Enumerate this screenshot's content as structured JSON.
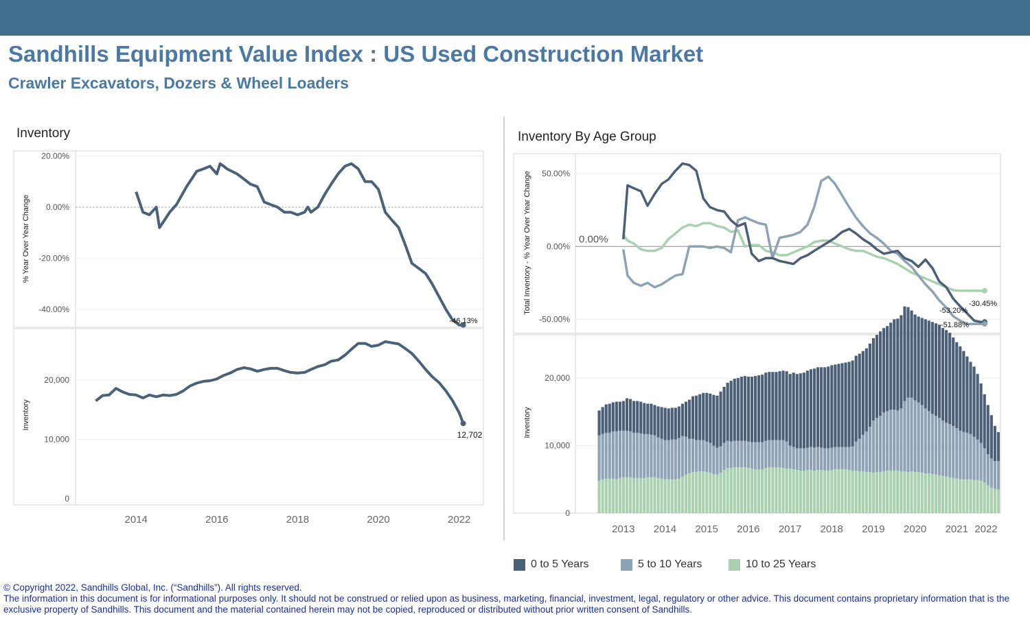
{
  "header": {
    "title": "Sandhills Equipment Value Index : US Used Construction Market",
    "subtitle": "Crawler Excavators, Dozers &  Wheel Loaders"
  },
  "colors": {
    "header_bar": "#3f6e8f",
    "title": "#4a79a5",
    "age_0_5": "#4b5f77",
    "age_5_10": "#8ea2b6",
    "age_10_25": "#a9d1b0",
    "line": "#4b6178",
    "footer_text": "#1a2f9a"
  },
  "left_panel": {
    "title": "Inventory"
  },
  "right_panel": {
    "title": "Inventory By Age Group"
  },
  "legend": {
    "items": [
      {
        "label": "0 to 5 Years",
        "color": "#4b5f77"
      },
      {
        "label": "5 to 10 Years",
        "color": "#8ea2b6"
      },
      {
        "label": "10 to 25 Years",
        "color": "#a9d1b0"
      }
    ]
  },
  "footer": {
    "line1": "© Copyright 2022, Sandhills Global, Inc. (“Sandhills”). All rights reserved.",
    "line2": "The information in this document is for informational purposes only.  It should not be construed or relied upon as business, marketing, financial, investment, legal, regulatory or other advice. This document contains proprietary information that is the exclusive property of Sandhills. This document and the material contained herein may not be copied, reproduced or distributed without prior written consent of Sandhills."
  },
  "chart_data": [
    {
      "id": "yoy_total",
      "type": "line",
      "ylabel": "% Year Over Year Change",
      "ylim": [
        -47,
        22
      ],
      "yticks": [
        20,
        0,
        -20,
        -40
      ],
      "ytick_labels": [
        "20.00%",
        "0.00%",
        "-20.00%",
        "-40.00%"
      ],
      "zero_line": true,
      "end_label": "-46.13%",
      "x": [
        2014.0,
        2014.17,
        2014.33,
        2014.5,
        2014.58,
        2014.75,
        2014.83,
        2015.0,
        2015.25,
        2015.5,
        2015.67,
        2015.83,
        2016.0,
        2016.08,
        2016.17,
        2016.25,
        2016.5,
        2016.67,
        2016.83,
        2017.0,
        2017.17,
        2017.33,
        2017.5,
        2017.67,
        2017.83,
        2018.0,
        2018.17,
        2018.25,
        2018.33,
        2018.5,
        2018.67,
        2018.83,
        2019.0,
        2019.17,
        2019.33,
        2019.5,
        2019.67,
        2019.83,
        2020.0,
        2020.17,
        2020.33,
        2020.5,
        2020.67,
        2020.83,
        2021.0,
        2021.17,
        2021.33,
        2021.5,
        2021.67,
        2021.83,
        2022.0,
        2022.1
      ],
      "y": [
        6,
        -2,
        -3,
        0,
        -8,
        -4,
        -2,
        1,
        8,
        14,
        15,
        16,
        13,
        17,
        16,
        15,
        13,
        11,
        9,
        8,
        2,
        1,
        0,
        -2,
        -2,
        -3,
        -2,
        0,
        -2,
        0,
        5,
        9,
        13,
        16,
        17,
        15,
        10,
        10,
        7,
        -2,
        -5,
        -8,
        -15,
        -22,
        -24,
        -26,
        -30,
        -35,
        -40,
        -44,
        -46.13,
        -46.13
      ]
    },
    {
      "id": "inventory_total",
      "type": "line",
      "ylabel": "Inventory",
      "ylim": [
        0,
        28000
      ],
      "yticks": [
        0,
        10000,
        20000
      ],
      "ytick_labels": [
        "0",
        "10,000",
        "20,000"
      ],
      "xticks": [
        2014,
        2016,
        2018,
        2020,
        2022
      ],
      "xlim": [
        2012.5,
        2022.6
      ],
      "end_label": "12,702",
      "x": [
        2013.0,
        2013.17,
        2013.33,
        2013.5,
        2013.67,
        2013.83,
        2014.0,
        2014.17,
        2014.33,
        2014.5,
        2014.67,
        2014.83,
        2015.0,
        2015.17,
        2015.33,
        2015.5,
        2015.67,
        2015.83,
        2016.0,
        2016.17,
        2016.33,
        2016.5,
        2016.67,
        2016.83,
        2017.0,
        2017.17,
        2017.33,
        2017.5,
        2017.67,
        2017.83,
        2018.0,
        2018.17,
        2018.33,
        2018.5,
        2018.67,
        2018.83,
        2019.0,
        2019.17,
        2019.33,
        2019.5,
        2019.67,
        2019.83,
        2020.0,
        2020.17,
        2020.33,
        2020.5,
        2020.67,
        2020.83,
        2021.0,
        2021.17,
        2021.33,
        2021.5,
        2021.67,
        2021.83,
        2022.0,
        2022.1
      ],
      "y": [
        16500,
        17400,
        17500,
        18600,
        18000,
        17600,
        17500,
        17000,
        17500,
        17200,
        17500,
        17400,
        17600,
        18200,
        19000,
        19500,
        19800,
        19900,
        20200,
        20800,
        21200,
        21800,
        22100,
        21900,
        21500,
        21800,
        22000,
        22000,
        21600,
        21300,
        21200,
        21300,
        21800,
        22300,
        22600,
        23200,
        23400,
        24200,
        25200,
        26200,
        26200,
        25700,
        25900,
        26500,
        26300,
        26100,
        25300,
        24500,
        23200,
        21800,
        20600,
        19600,
        18200,
        16600,
        14500,
        12702
      ]
    },
    {
      "id": "yoy_by_age",
      "type": "line",
      "ylabel": "Total Inventory - % Year Over Year Change",
      "ylim": [
        -55,
        60
      ],
      "yticks": [
        50,
        0,
        -50
      ],
      "ytick_labels": [
        "50.00%",
        "0.00%",
        "-50.00%"
      ],
      "zero_label": "0.00%",
      "xlim": [
        2012.35,
        2022.55
      ],
      "x": [
        2013.5,
        2013.6,
        2013.75,
        2013.92,
        2014.08,
        2014.25,
        2014.42,
        2014.58,
        2014.75,
        2014.92,
        2015.08,
        2015.25,
        2015.42,
        2015.58,
        2015.75,
        2015.92,
        2016.08,
        2016.25,
        2016.42,
        2016.58,
        2016.75,
        2016.92,
        2017.08,
        2017.25,
        2017.42,
        2017.58,
        2017.75,
        2017.92,
        2018.08,
        2018.25,
        2018.42,
        2018.58,
        2018.75,
        2018.92,
        2019.08,
        2019.25,
        2019.42,
        2019.58,
        2019.75,
        2019.92,
        2020.08,
        2020.25,
        2020.42,
        2020.58,
        2020.75,
        2020.92,
        2021.08,
        2021.25,
        2021.42,
        2021.58,
        2021.75,
        2021.92,
        2022.08,
        2022.17
      ],
      "series": [
        {
          "name": "0 to 5 Years",
          "color": "#4b5f77",
          "end_label": "-51.88%",
          "y": [
            5,
            42,
            40,
            38,
            28,
            36,
            43,
            46,
            52,
            57,
            56,
            52,
            33,
            27,
            25,
            24,
            18,
            14,
            16,
            -5,
            -10,
            -8,
            -8,
            -10,
            -11,
            -12,
            -8,
            -6,
            -3,
            0,
            3,
            6,
            10,
            12,
            9,
            5,
            2,
            -2,
            -5,
            -4,
            -3,
            -8,
            -10,
            -14,
            -9,
            -15,
            -24,
            -28,
            -36,
            -41,
            -46,
            -51,
            -51.88,
            -51.88
          ]
        },
        {
          "name": "5 to 10 Years",
          "color": "#8ea2b6",
          "end_label": "-53.20%",
          "y": [
            -2,
            -20,
            -25,
            -27,
            -25,
            -28,
            -26,
            -23,
            -20,
            -19,
            0,
            0,
            0,
            -1,
            0,
            -1,
            -4,
            18,
            20,
            18,
            16,
            15,
            -8,
            6,
            7,
            8,
            10,
            15,
            27,
            45,
            48,
            43,
            35,
            27,
            20,
            14,
            9,
            6,
            2,
            -3,
            -5,
            -10,
            -14,
            -20,
            -26,
            -31,
            -37,
            -42,
            -48,
            -51,
            -53.2,
            -53.2,
            -53.2,
            -53.2
          ]
        },
        {
          "name": "10 to 25 Years",
          "color": "#a9d1b0",
          "end_label": "-30.45%",
          "y": [
            8,
            4,
            2,
            -2,
            -3,
            -3,
            -1,
            5,
            9,
            13,
            15,
            14,
            16,
            16,
            14,
            13,
            10,
            11,
            0,
            1,
            1,
            -3,
            -4,
            -6,
            -6,
            -4,
            -2,
            0,
            3,
            4,
            4,
            2,
            0,
            -2,
            -3,
            -3,
            -5,
            -7,
            -8,
            -10,
            -12,
            -15,
            -18,
            -20,
            -22,
            -24,
            -26,
            -28,
            -30,
            -30.45,
            -30.45,
            -30.45,
            -30.45,
            -30.45
          ]
        }
      ]
    },
    {
      "id": "inventory_by_age",
      "type": "bar",
      "stacked": true,
      "ylabel": "Inventory",
      "ylim": [
        0,
        26000
      ],
      "yticks": [
        0,
        10000,
        20000
      ],
      "ytick_labels": [
        "0",
        "10,000",
        "20,000"
      ],
      "xticks": [
        2013,
        2014,
        2015,
        2016,
        2017,
        2018,
        2019,
        2020,
        2021,
        2022
      ],
      "xlim": [
        2012.35,
        2022.55
      ],
      "x_start": 2012.92,
      "x_step": 0.0833,
      "series": [
        {
          "name": "10 to 25 Years",
          "color": "#a9d1b0",
          "values": [
            4800,
            5000,
            5100,
            5100,
            5100,
            5000,
            5200,
            5300,
            5300,
            5300,
            5200,
            5200,
            5200,
            5200,
            5300,
            5300,
            5300,
            5200,
            5100,
            5000,
            5000,
            5000,
            5000,
            5100,
            5400,
            5700,
            5900,
            6100,
            6100,
            6200,
            6200,
            6100,
            6000,
            5800,
            5700,
            6000,
            6400,
            6700,
            6700,
            6800,
            6800,
            6800,
            6800,
            6700,
            6600,
            6500,
            6500,
            6500,
            6700,
            6800,
            6800,
            6800,
            6800,
            6700,
            6600,
            6600,
            6500,
            6400,
            6300,
            6300,
            6400,
            6400,
            6300,
            6400,
            6400,
            6300,
            6300,
            6400,
            6500,
            6500,
            6500,
            6500,
            6400,
            6300,
            6300,
            6200,
            6200,
            6100,
            6100,
            6000,
            6100,
            6100,
            6200,
            6300,
            6300,
            6300,
            6300,
            6200,
            6200,
            6100,
            6200,
            6100,
            6100,
            6000,
            5900,
            5900,
            5800,
            5700,
            5600,
            5500,
            5400,
            5300,
            5200,
            5100,
            5000,
            5000,
            5000,
            5000,
            4900,
            4900,
            4800,
            4500,
            4100,
            3800,
            3600,
            3500
          ]
        },
        {
          "name": "5 to 10 Years",
          "color": "#8ea2b6",
          "values": [
            6700,
            6700,
            6800,
            6800,
            7000,
            7100,
            7000,
            6900,
            6900,
            6800,
            6700,
            6700,
            6600,
            6500,
            6400,
            6300,
            6200,
            6000,
            5900,
            5800,
            5800,
            5900,
            5900,
            6000,
            6000,
            5600,
            5100,
            4900,
            4700,
            4600,
            4600,
            4500,
            4400,
            4200,
            4000,
            3900,
            4000,
            4000,
            3900,
            3900,
            3900,
            3900,
            3900,
            3900,
            3900,
            4000,
            4000,
            4000,
            4000,
            4000,
            4000,
            4000,
            4000,
            4100,
            4000,
            3400,
            3300,
            3200,
            3300,
            3300,
            3300,
            3400,
            3400,
            3400,
            3300,
            3300,
            3300,
            3300,
            3300,
            3300,
            3300,
            3300,
            3400,
            3600,
            4300,
            4800,
            5400,
            6000,
            6700,
            7700,
            8000,
            8300,
            8700,
            8800,
            9000,
            9000,
            8900,
            9300,
            10400,
            11000,
            10900,
            10600,
            10300,
            10000,
            9600,
            9200,
            8900,
            8700,
            8500,
            8200,
            8000,
            7900,
            7700,
            7500,
            7200,
            7000,
            6900,
            6700,
            6400,
            6000,
            5600,
            5100,
            4600,
            4300,
            4100,
            4200
          ]
        },
        {
          "name": "0 to 5 Years",
          "color": "#4b5f77",
          "values": [
            3700,
            4000,
            4200,
            4300,
            4300,
            4400,
            4300,
            4400,
            4800,
            4800,
            4700,
            4700,
            4700,
            4600,
            4500,
            4600,
            4500,
            4600,
            4700,
            4800,
            4700,
            4700,
            4700,
            4700,
            4800,
            5200,
            5800,
            6300,
            6600,
            6800,
            7000,
            7200,
            7300,
            7500,
            7700,
            8100,
            8300,
            8600,
            9000,
            9200,
            9300,
            9500,
            9600,
            9600,
            9700,
            9800,
            9900,
            10000,
            10100,
            10100,
            10100,
            10100,
            10200,
            10300,
            10400,
            10600,
            11000,
            11000,
            11100,
            11200,
            11400,
            11500,
            11700,
            11800,
            11900,
            12000,
            12100,
            12200,
            12200,
            12300,
            12400,
            12500,
            12600,
            12700,
            12700,
            12600,
            12400,
            12300,
            12300,
            12200,
            12300,
            12500,
            12500,
            12600,
            12900,
            13400,
            13600,
            13800,
            14000,
            13400,
            12900,
            12700,
            12700,
            12900,
            13200,
            13400,
            13600,
            13700,
            13800,
            13700,
            13700,
            13500,
            13100,
            12700,
            12500,
            12000,
            11300,
            10700,
            10400,
            9700,
            8800,
            8000,
            7300,
            6400,
            5200,
            4300
          ]
        }
      ]
    }
  ]
}
